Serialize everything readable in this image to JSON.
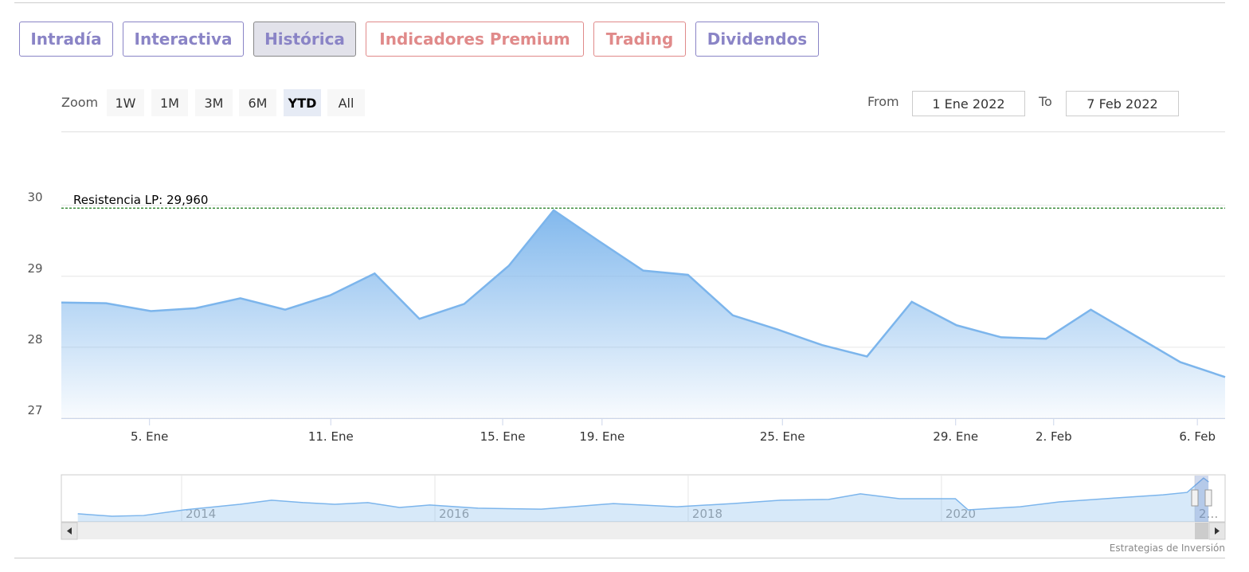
{
  "tabs": [
    "Intradía",
    "Interactiva",
    "Histórica",
    "Indicadores Premium",
    "Trading",
    "Dividendos"
  ],
  "zoom": {
    "label": "Zoom",
    "buttons": [
      "1W",
      "1M",
      "3M",
      "6M",
      "YTD",
      "All"
    ],
    "selected": "YTD"
  },
  "range": {
    "from_label": "From",
    "from": "1 Ene 2022",
    "to_label": "To",
    "to": "7 Feb 2022"
  },
  "credit": "Estrategias de Inversión",
  "chart_data": {
    "type": "area",
    "color": "#7cb5ec",
    "values": [
      28.63,
      28.62,
      28.51,
      28.55,
      28.69,
      28.53,
      28.73,
      29.04,
      28.4,
      28.61,
      29.15,
      29.93,
      29.5,
      29.08,
      29.02,
      28.45,
      28.25,
      28.03,
      27.87,
      28.64,
      28.31,
      28.14,
      28.12,
      28.53,
      28.16,
      27.79,
      27.58
    ],
    "xlim": [
      0,
      26
    ],
    "xticks": [
      {
        "value": 1.97,
        "label": "5. Ene"
      },
      {
        "value": 6.02,
        "label": "11. Ene"
      },
      {
        "value": 9.86,
        "label": "15. Ene"
      },
      {
        "value": 12.08,
        "label": "19. Ene"
      },
      {
        "value": 16.11,
        "label": "25. Ene"
      },
      {
        "value": 19.98,
        "label": "29. Ene"
      },
      {
        "value": 22.17,
        "label": "2. Feb"
      },
      {
        "value": 25.38,
        "label": "6. Feb"
      }
    ],
    "ylim": [
      27,
      31.04
    ],
    "yticks": [
      27,
      28,
      29,
      30
    ],
    "grid": true,
    "plot_lines": [
      {
        "value": 29.96,
        "label": "Resistencia LP: 29,960",
        "color": "#1a7a1a"
      }
    ],
    "navigator": {
      "color": "#7cb5ec",
      "x": [
        2013.18,
        2013.45,
        2013.7,
        2014.02,
        2014.46,
        2014.71,
        2014.96,
        2015.21,
        2015.47,
        2015.72,
        2015.96,
        2016.34,
        2016.84,
        2017.41,
        2017.91,
        2018.35,
        2018.73,
        2019.11,
        2019.36,
        2019.67,
        2020.11,
        2020.21,
        2020.62,
        2020.93,
        2021.37,
        2021.75,
        2021.94,
        2022.07,
        2022.11
      ],
      "values": [
        15.3,
        14.3,
        14.6,
        16.9,
        19.2,
        20.9,
        19.9,
        19.2,
        19.9,
        17.9,
        18.9,
        17.6,
        17.2,
        19.5,
        18.2,
        19.5,
        20.9,
        21.2,
        23.5,
        21.5,
        21.5,
        16.9,
        18.2,
        20.2,
        21.8,
        23.1,
        24.1,
        30.0,
        28.4
      ],
      "xlim": [
        2013.05,
        2022.24
      ],
      "ylim": [
        12,
        31
      ],
      "xticks": [
        2014,
        2016,
        2018,
        2020,
        {
          "value": 2022,
          "label": "2…"
        }
      ]
    }
  }
}
